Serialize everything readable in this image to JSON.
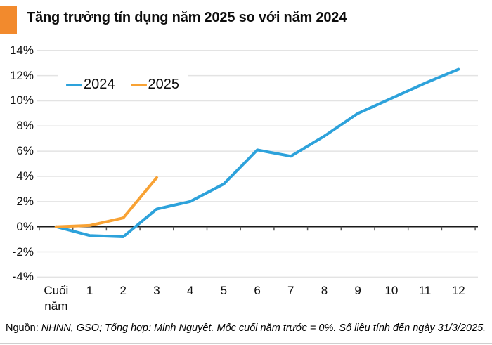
{
  "header": {
    "title": "Tăng trưởng tín dụng năm 2025 so với năm 2024"
  },
  "legend": [
    {
      "label": "2024",
      "color": "#2da2db"
    },
    {
      "label": "2025",
      "color": "#f8a234"
    }
  ],
  "chart_data": {
    "type": "line",
    "title": "Tăng trưởng tín dụng năm 2025 so với năm 2024",
    "categories": [
      "Cuối năm",
      "1",
      "2",
      "3",
      "4",
      "5",
      "6",
      "7",
      "8",
      "9",
      "10",
      "11",
      "12"
    ],
    "series": [
      {
        "name": "2024",
        "color": "#2da2db",
        "values": [
          0,
          -0.7,
          -0.8,
          1.4,
          2.0,
          3.4,
          6.1,
          5.6,
          7.2,
          9.0,
          10.2,
          11.4,
          12.5
        ]
      },
      {
        "name": "2025",
        "color": "#f8a234",
        "values": [
          0,
          0.1,
          0.7,
          3.9
        ]
      }
    ],
    "y_ticks": [
      "14%",
      "12%",
      "10%",
      "8%",
      "6%",
      "4%",
      "2%",
      "0%",
      "-2%",
      "-4%"
    ],
    "ylim": [
      -4,
      14
    ],
    "xlabel": "",
    "ylabel": "",
    "grid": true,
    "legend_position": "top-left",
    "baseline_note": "Mốc cuối năm trước = 0%"
  },
  "footer": {
    "source_label": "Nguồn:",
    "source_text": "NHNN, GSO; Tổng hợp: Minh Nguyệt. Mốc cuối năm trước = 0%.  Số liệu tính đến ngày 31/3/2025."
  },
  "colors": {
    "accent_square": "#f28a2d",
    "series_2024": "#2da2db",
    "series_2025": "#f8a234",
    "gridline": "#e3e3e3",
    "axis": "#1a1a1a"
  }
}
